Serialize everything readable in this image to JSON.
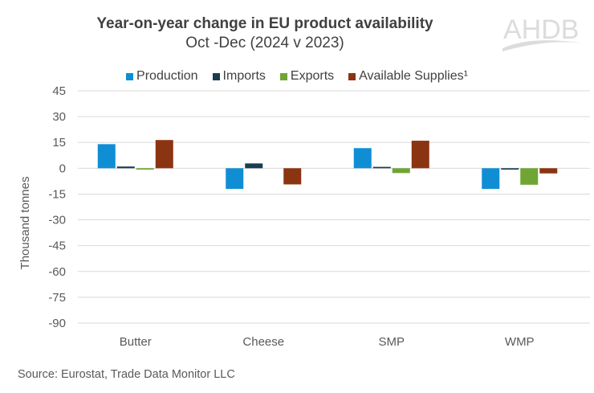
{
  "logo_text": "AHDB",
  "chart_data": {
    "type": "bar",
    "title": "Year-on-year change in EU product availability",
    "subtitle": "Oct -Dec (2024 v 2023)",
    "xlabel": "",
    "ylabel": "Thousand tonnes",
    "ylim": [
      -90,
      45
    ],
    "yticks": [
      45,
      30,
      15,
      0,
      -15,
      -30,
      -45,
      -60,
      -75,
      -90
    ],
    "grid": true,
    "legend_position": "top",
    "categories": [
      "Butter",
      "Cheese",
      "SMP",
      "WMP"
    ],
    "series": [
      {
        "name": "Production",
        "color": "#0f8ed4",
        "values": [
          14,
          -12,
          11.7,
          -12
        ]
      },
      {
        "name": "Imports",
        "color": "#1a3d4f",
        "values": [
          1,
          2.8,
          0.8,
          -0.8
        ]
      },
      {
        "name": "Exports",
        "color": "#6fa534",
        "values": [
          -0.8,
          0,
          -2.8,
          -9.6
        ]
      },
      {
        "name": "Available Supplies¹",
        "color": "#8b3412",
        "values": [
          16.4,
          -9.4,
          16,
          -3
        ]
      }
    ],
    "source": "Source: Eurostat, Trade Data Monitor LLC"
  }
}
